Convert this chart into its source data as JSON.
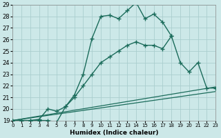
{
  "xlabel": "Humidex (Indice chaleur)",
  "bg_color": "#cce8e8",
  "grid_color": "#aacece",
  "line_color": "#1a6b5a",
  "xlim": [
    0,
    23
  ],
  "ylim": [
    19,
    29
  ],
  "yticks": [
    19,
    20,
    21,
    22,
    23,
    24,
    25,
    26,
    27,
    28,
    29
  ],
  "xticks": [
    0,
    1,
    2,
    3,
    4,
    5,
    6,
    7,
    8,
    9,
    10,
    11,
    12,
    13,
    14,
    15,
    16,
    17,
    18,
    19,
    20,
    21,
    22,
    23
  ],
  "curve1_x": [
    0,
    1,
    2,
    3,
    4,
    5,
    6,
    7,
    8,
    9,
    10,
    11,
    12,
    13,
    14,
    15,
    16,
    17,
    18
  ],
  "curve1_y": [
    19,
    19,
    19,
    19,
    19,
    18.85,
    20.2,
    21.2,
    23.0,
    26.1,
    28.0,
    28.1,
    27.8,
    28.5,
    29.2,
    27.8,
    28.2,
    27.5,
    26.3
  ],
  "curve2_x": [
    0,
    1,
    2,
    3,
    4,
    5,
    6,
    7,
    8,
    9,
    10,
    11,
    12,
    13,
    14,
    15,
    16,
    17,
    18,
    19,
    20,
    21,
    22,
    23
  ],
  "curve2_y": [
    19,
    19,
    19,
    19.1,
    20.0,
    19.8,
    20.2,
    21.0,
    22.0,
    23.0,
    24.0,
    24.5,
    25.0,
    25.5,
    25.8,
    25.5,
    25.5,
    25.2,
    26.3,
    24.0,
    23.2,
    24.0,
    21.8,
    21.8
  ],
  "line1_x": [
    0,
    23
  ],
  "line1_y": [
    19,
    21.5
  ],
  "line2_x": [
    0,
    23
  ],
  "line2_y": [
    19,
    21.9
  ]
}
